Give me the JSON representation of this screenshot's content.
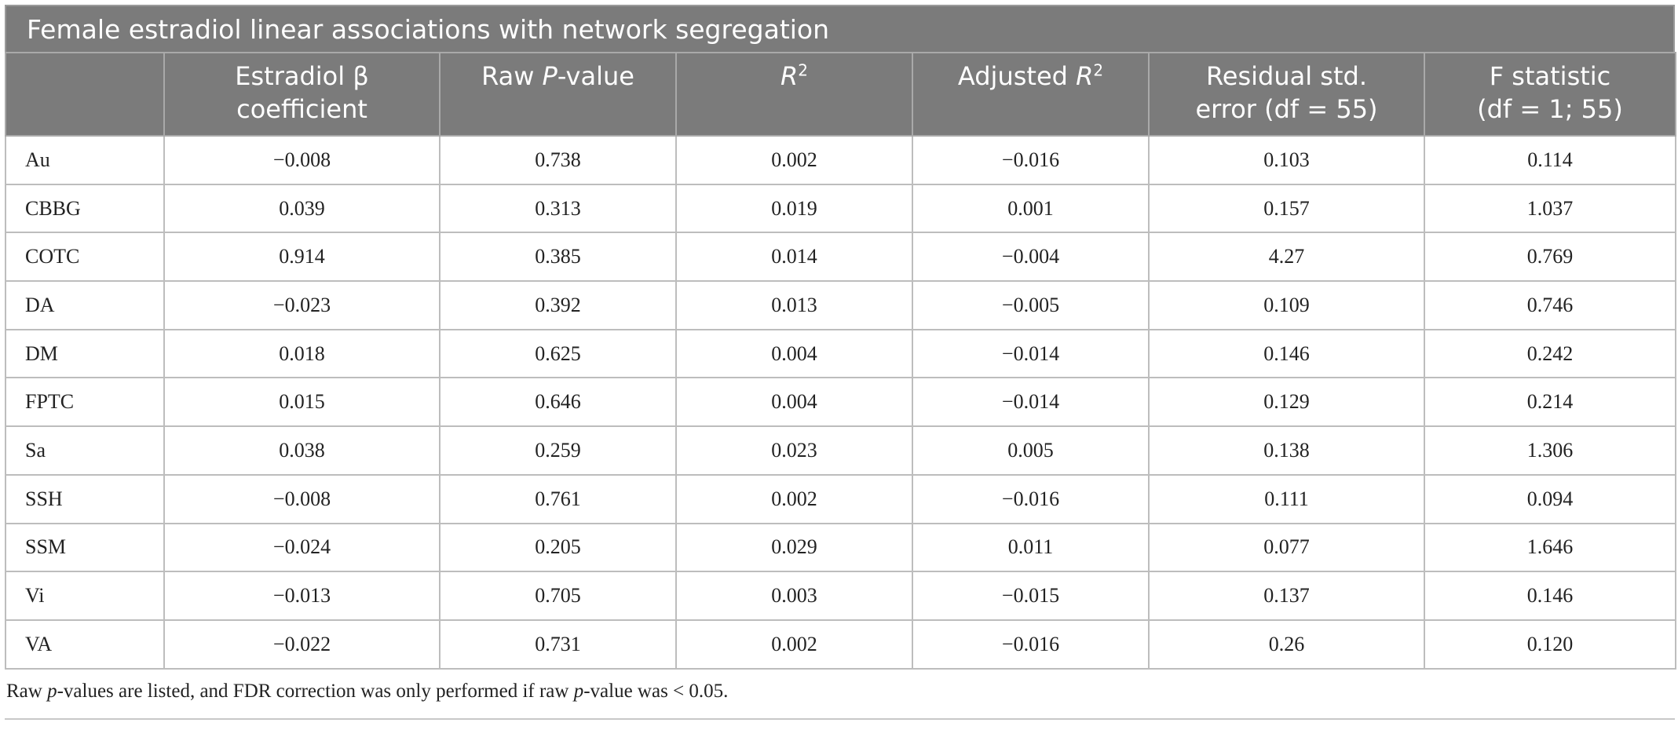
{
  "title": "Female estradiol linear associations with network segregation",
  "columns": {
    "c1": {
      "line1": "Estradiol β",
      "line2": "coefficient"
    },
    "c2": {
      "pre": "Raw ",
      "ital": "P",
      "post": "-value"
    },
    "c3": {
      "ital": "R",
      "sup": "2"
    },
    "c4": {
      "pre": "Adjusted ",
      "ital": "R",
      "sup": "2"
    },
    "c5": {
      "line1": "Residual std.",
      "line2": "error (df = 55)"
    },
    "c6": {
      "line1": "F statistic",
      "line2": "(df = 1; 55)"
    }
  },
  "rows": [
    {
      "label": "Au",
      "beta": "−0.008",
      "p": "0.738",
      "r2": "0.002",
      "adj": "−0.016",
      "rse": "0.103",
      "f": "0.114"
    },
    {
      "label": "CBBG",
      "beta": "0.039",
      "p": "0.313",
      "r2": "0.019",
      "adj": "0.001",
      "rse": "0.157",
      "f": "1.037"
    },
    {
      "label": "COTC",
      "beta": "0.914",
      "p": "0.385",
      "r2": "0.014",
      "adj": "−0.004",
      "rse": "4.27",
      "f": "0.769"
    },
    {
      "label": "DA",
      "beta": "−0.023",
      "p": "0.392",
      "r2": "0.013",
      "adj": "−0.005",
      "rse": "0.109",
      "f": "0.746"
    },
    {
      "label": "DM",
      "beta": "0.018",
      "p": "0.625",
      "r2": "0.004",
      "adj": "−0.014",
      "rse": "0.146",
      "f": "0.242"
    },
    {
      "label": "FPTC",
      "beta": "0.015",
      "p": "0.646",
      "r2": "0.004",
      "adj": "−0.014",
      "rse": "0.129",
      "f": "0.214"
    },
    {
      "label": "Sa",
      "beta": "0.038",
      "p": "0.259",
      "r2": "0.023",
      "adj": "0.005",
      "rse": "0.138",
      "f": "1.306"
    },
    {
      "label": "SSH",
      "beta": "−0.008",
      "p": "0.761",
      "r2": "0.002",
      "adj": "−0.016",
      "rse": "0.111",
      "f": "0.094"
    },
    {
      "label": "SSM",
      "beta": "−0.024",
      "p": "0.205",
      "r2": "0.029",
      "adj": "0.011",
      "rse": "0.077",
      "f": "1.646"
    },
    {
      "label": "Vi",
      "beta": "−0.013",
      "p": "0.705",
      "r2": "0.003",
      "adj": "−0.015",
      "rse": "0.137",
      "f": "0.146"
    },
    {
      "label": "VA",
      "beta": "−0.022",
      "p": "0.731",
      "r2": "0.002",
      "adj": "−0.016",
      "rse": "0.26",
      "f": "0.120"
    }
  ],
  "footnote": {
    "a": "Raw ",
    "b": "p",
    "c": "-values are listed, and FDR correction was only performed if raw ",
    "d": "p",
    "e": "-value was < 0.05."
  }
}
